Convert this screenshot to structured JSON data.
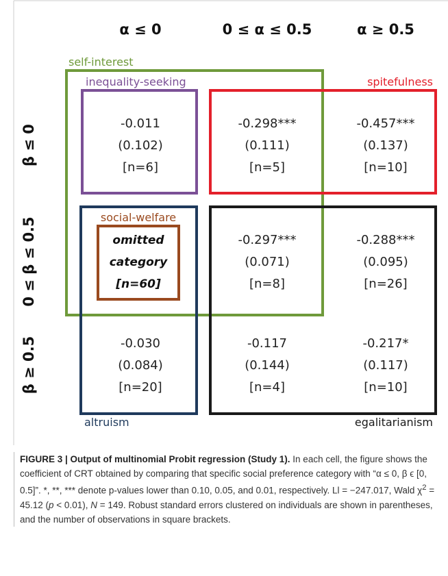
{
  "column_headers": [
    "α ≤ 0",
    "0 ≤ α ≤ 0.5",
    "α ≥ 0.5"
  ],
  "row_headers": [
    "β ≤ 0",
    "0 ≤ β ≤ 0.5",
    "β ≥ 0.5"
  ],
  "groups": {
    "self_interest": "self-interest",
    "inequality_seeking": "inequality-seeking",
    "spitefulness": "spitefulness",
    "social_welfare": "social-welfare",
    "altruism": "altruism",
    "egalitarianism": "egalitarianism"
  },
  "cells": [
    [
      {
        "coef": "-0.011",
        "se": "(0.102)",
        "n": "[n=6]"
      },
      {
        "coef": "-0.298***",
        "se": "(0.111)",
        "n": "[n=5]"
      },
      {
        "coef": "-0.457***",
        "se": "(0.137)",
        "n": "[n=10]"
      }
    ],
    [
      {
        "text": [
          "omitted",
          "category",
          "[n=60]"
        ]
      },
      {
        "coef": "-0.297***",
        "se": "(0.071)",
        "n": "[n=8]"
      },
      {
        "coef": "-0.288***",
        "se": "(0.095)",
        "n": "[n=26]"
      }
    ],
    [
      {
        "coef": "-0.030",
        "se": "(0.084)",
        "n": "[n=20]"
      },
      {
        "coef": "-0.117",
        "se": "(0.144)",
        "n": "[n=4]"
      },
      {
        "coef": "-0.217*",
        "se": "(0.117)",
        "n": "[n=10]"
      }
    ]
  ],
  "caption": {
    "label": "FIGURE 3 | Output of multinomial Probit regression (Study 1).",
    "body": [
      " In each cell, the figure shows the coefficient of CRT obtained by comparing that specific social preference category with “α ≤ 0, β ϵ [0, 0.5]”. *, **, *** denote p-values lower than 0.10, 0.05, and 0.01, respectively. Ll = −247.017, Wald χ",
      "2",
      " = 45.12 (",
      "p",
      " < 0.01), ",
      "N",
      " = 149. Robust standard errors clustered on individuals are shown in parentheses, and the number of observations in square brackets."
    ]
  }
}
